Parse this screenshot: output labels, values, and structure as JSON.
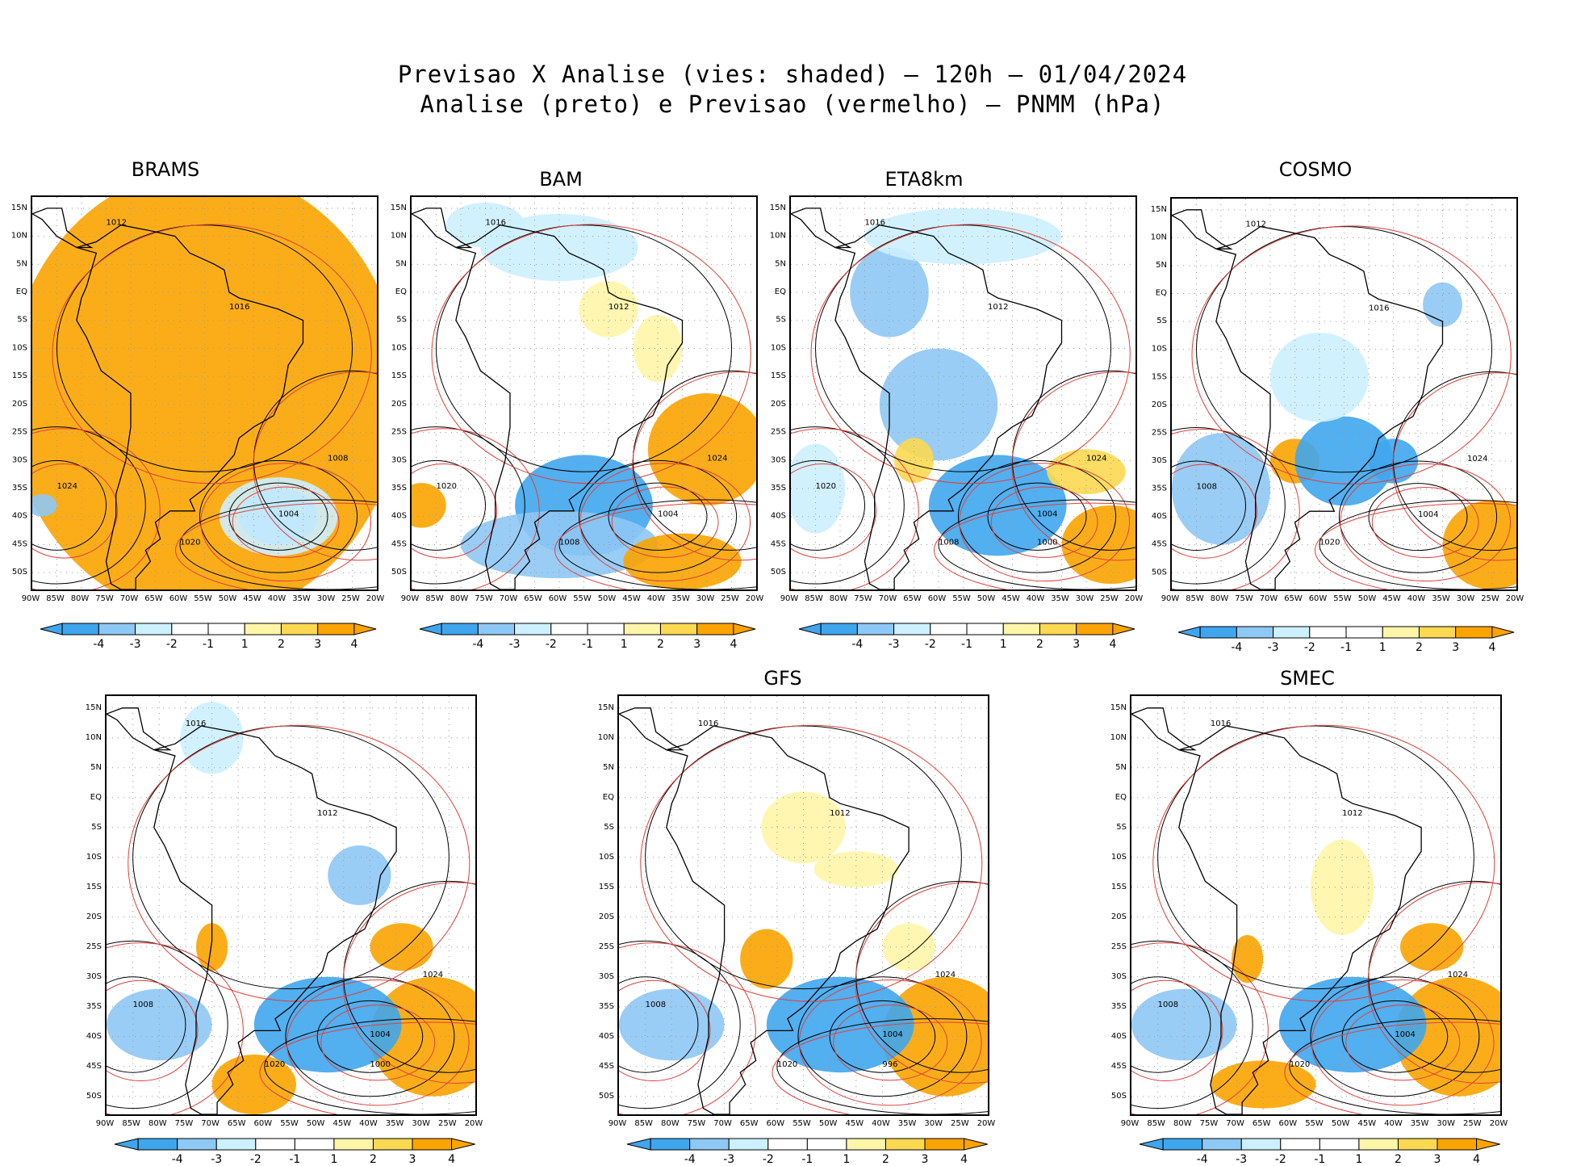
{
  "title": {
    "line1": "Previsao X Analise (vies: shaded) – 120h – 01/04/2024",
    "line2": "Analise (preto) e Previsao (vermelho) – PNMM (hPa)"
  },
  "colors": {
    "neg4": "#3fa6ee",
    "neg3": "#8ec8f4",
    "neg2": "#cdf0ff",
    "neutral": "#ffffff",
    "pos2": "#fff5a8",
    "pos3": "#fcd951",
    "pos4": "#fba400",
    "analysis_contour": "#000000",
    "forecast_contour": "#e0403a",
    "land_line": "#000000"
  },
  "axes": {
    "lon_labels": [
      "90W",
      "85W",
      "80W",
      "75W",
      "70W",
      "65W",
      "60W",
      "55W",
      "50W",
      "45W",
      "40W",
      "35W",
      "30W",
      "25W",
      "20W"
    ],
    "lat_labels": [
      "15N",
      "10N",
      "5N",
      "EQ",
      "5S",
      "10S",
      "15S",
      "20S",
      "25S",
      "30S",
      "35S",
      "40S",
      "45S",
      "50S"
    ]
  },
  "colorbar": {
    "labels": [
      "-4",
      "-3",
      "-2",
      "-1",
      "1",
      "2",
      "3",
      "4"
    ]
  },
  "panels": [
    {
      "title": "BRAMS",
      "contour_labels": [
        "1012",
        "1016",
        "1020",
        "1024",
        "1008",
        "1004"
      ]
    },
    {
      "title": "BAM",
      "contour_labels": [
        "1016",
        "1012",
        "1008",
        "1020",
        "1024",
        "1004"
      ]
    },
    {
      "title": "ETA8km",
      "contour_labels": [
        "1016",
        "1012",
        "1008",
        "1020",
        "1024",
        "1004",
        "1000"
      ]
    },
    {
      "title": "COSMO",
      "contour_labels": [
        "1012",
        "1016",
        "1020",
        "1008",
        "1024",
        "1004"
      ]
    },
    {
      "title": "",
      "contour_labels": [
        "1016",
        "1012",
        "1020",
        "1008",
        "1024",
        "1004",
        "1000"
      ]
    },
    {
      "title": "GFS",
      "contour_labels": [
        "1016",
        "1012",
        "1020",
        "1008",
        "1024",
        "1004",
        "996"
      ]
    },
    {
      "title": "SMEC",
      "contour_labels": [
        "1016",
        "1012",
        "1020",
        "1008",
        "1024",
        "1004"
      ]
    }
  ]
}
